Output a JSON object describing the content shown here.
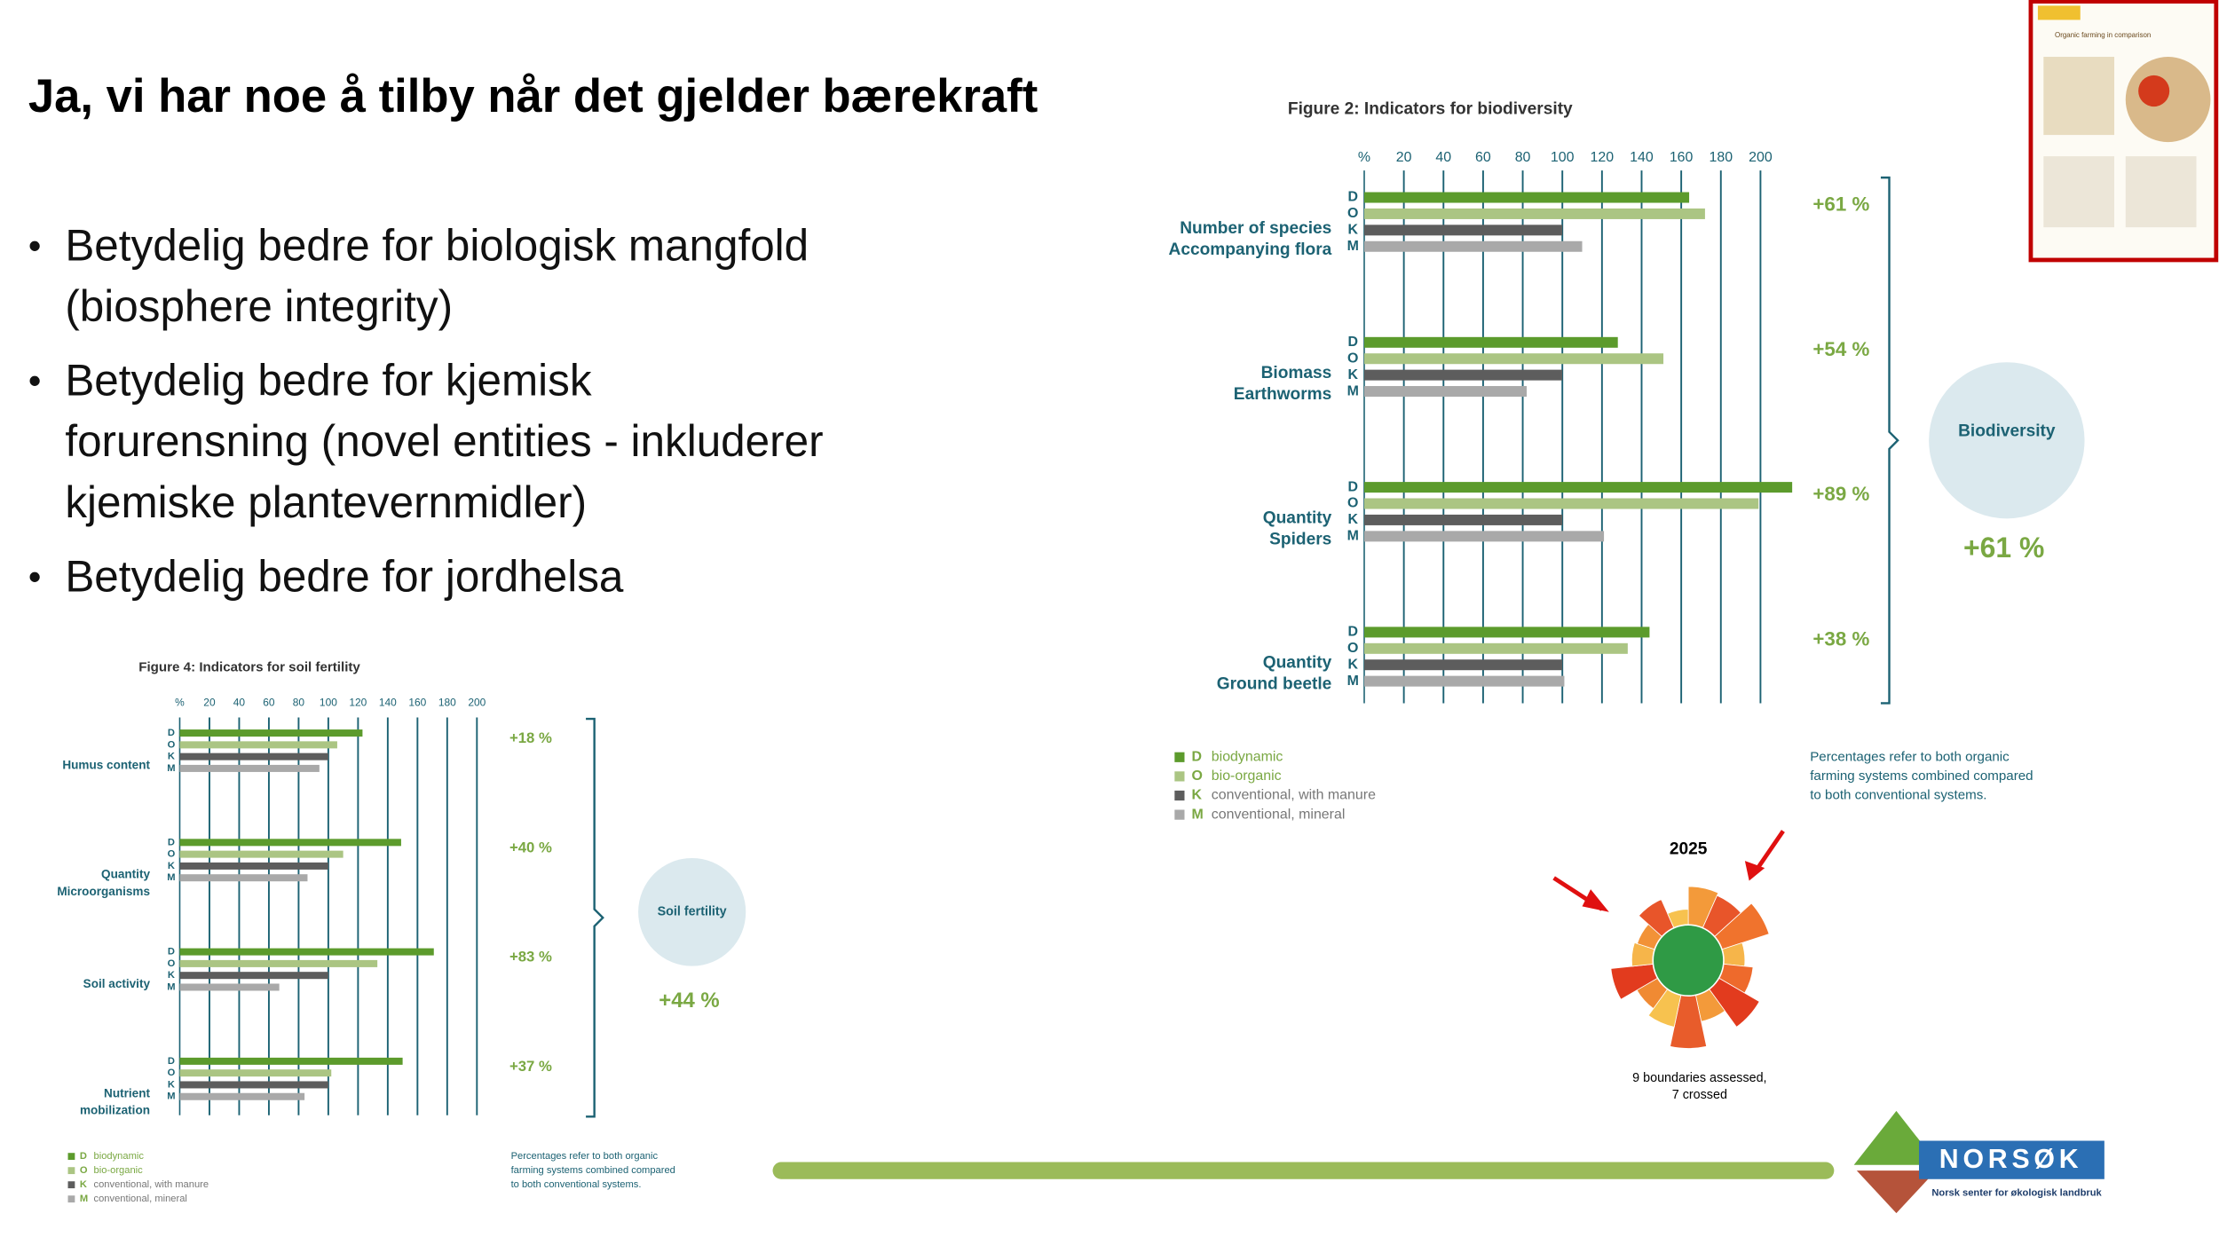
{
  "title": "Ja, vi har noe å tilby når det gjelder bærekraft",
  "bullets": [
    [
      "Betydelig bedre for biologisk mangfold",
      "(biosphere integrity)"
    ],
    [
      "Betydelig bedre for kjemisk",
      "forurensning (novel entities - inkluderer",
      "kjemiske plantevernmidler)"
    ],
    [
      "Betydelig bedre for jordhelsa"
    ]
  ],
  "thumbnail": {
    "title": "Organic farming in comparison"
  },
  "planetary": {
    "year": "2025",
    "caption": [
      "9 boundaries assessed,",
      "7 crossed"
    ]
  },
  "logo": {
    "name": "NORSØK",
    "subtitle": "Norsk senter for økologisk landbruk"
  },
  "chart_data": [
    {
      "type": "bar",
      "title": "Figure 2: Indicators for biodiversity",
      "xlabel": "%",
      "categories": [
        [
          "Number of species",
          "Accompanying flora"
        ],
        [
          "Biomass",
          "Earthworms"
        ],
        [
          "Quantity",
          "Spiders"
        ],
        [
          "Quantity",
          "Ground beetle"
        ]
      ],
      "series": [
        {
          "key": "D",
          "name": "biodynamic",
          "color": "#5c9b2c",
          "values": [
            164,
            128,
            216,
            144
          ]
        },
        {
          "key": "O",
          "name": "bio-organic",
          "color": "#abc583",
          "values": [
            172,
            151,
            199,
            133
          ]
        },
        {
          "key": "K",
          "name": "conventional, with manure",
          "color": "#5d5d5d",
          "values": [
            100,
            100,
            100,
            100
          ]
        },
        {
          "key": "M",
          "name": "conventional, mineral",
          "color": "#a9a9a9",
          "values": [
            110,
            82,
            121,
            101
          ]
        }
      ],
      "change_labels": [
        "+61 %",
        "+54 %",
        "+89 %",
        "+38 %"
      ],
      "summary": {
        "label": "Biodiversity",
        "value_label": "+61 %"
      },
      "note": [
        "Percentages refer to both organic",
        "farming systems combined compared",
        "to both conventional systems."
      ],
      "xlim": [
        0,
        220
      ],
      "xticks": [
        20,
        40,
        60,
        80,
        100,
        120,
        140,
        160,
        180,
        200
      ],
      "grid": true
    },
    {
      "type": "bar",
      "title": "Figure 4: Indicators for soil fertility",
      "xlabel": "%",
      "categories": [
        [
          "Humus content"
        ],
        [
          "Quantity",
          "Microorganisms"
        ],
        [
          "Soil activity"
        ],
        [
          "Nutrient",
          "mobilization"
        ]
      ],
      "series": [
        {
          "key": "D",
          "name": "biodynamic",
          "color": "#5c9b2c",
          "values": [
            123,
            149,
            171,
            150
          ]
        },
        {
          "key": "O",
          "name": "bio-organic",
          "color": "#abc583",
          "values": [
            106,
            110,
            133,
            102
          ]
        },
        {
          "key": "K",
          "name": "conventional, with manure",
          "color": "#5d5d5d",
          "values": [
            100,
            100,
            100,
            100
          ]
        },
        {
          "key": "M",
          "name": "conventional, mineral",
          "color": "#a9a9a9",
          "values": [
            94,
            86,
            67,
            84
          ]
        }
      ],
      "change_labels": [
        "+18 %",
        "+40 %",
        "+83 %",
        "+37 %"
      ],
      "summary": {
        "label": "Soil fertility",
        "value_label": "+44 %"
      },
      "note": [
        "Percentages refer to both organic",
        "farming systems combined compared",
        "to both conventional systems."
      ],
      "xlim": [
        0,
        200
      ],
      "xticks": [
        20,
        40,
        60,
        80,
        100,
        120,
        140,
        160,
        180,
        200
      ],
      "grid": true
    }
  ]
}
